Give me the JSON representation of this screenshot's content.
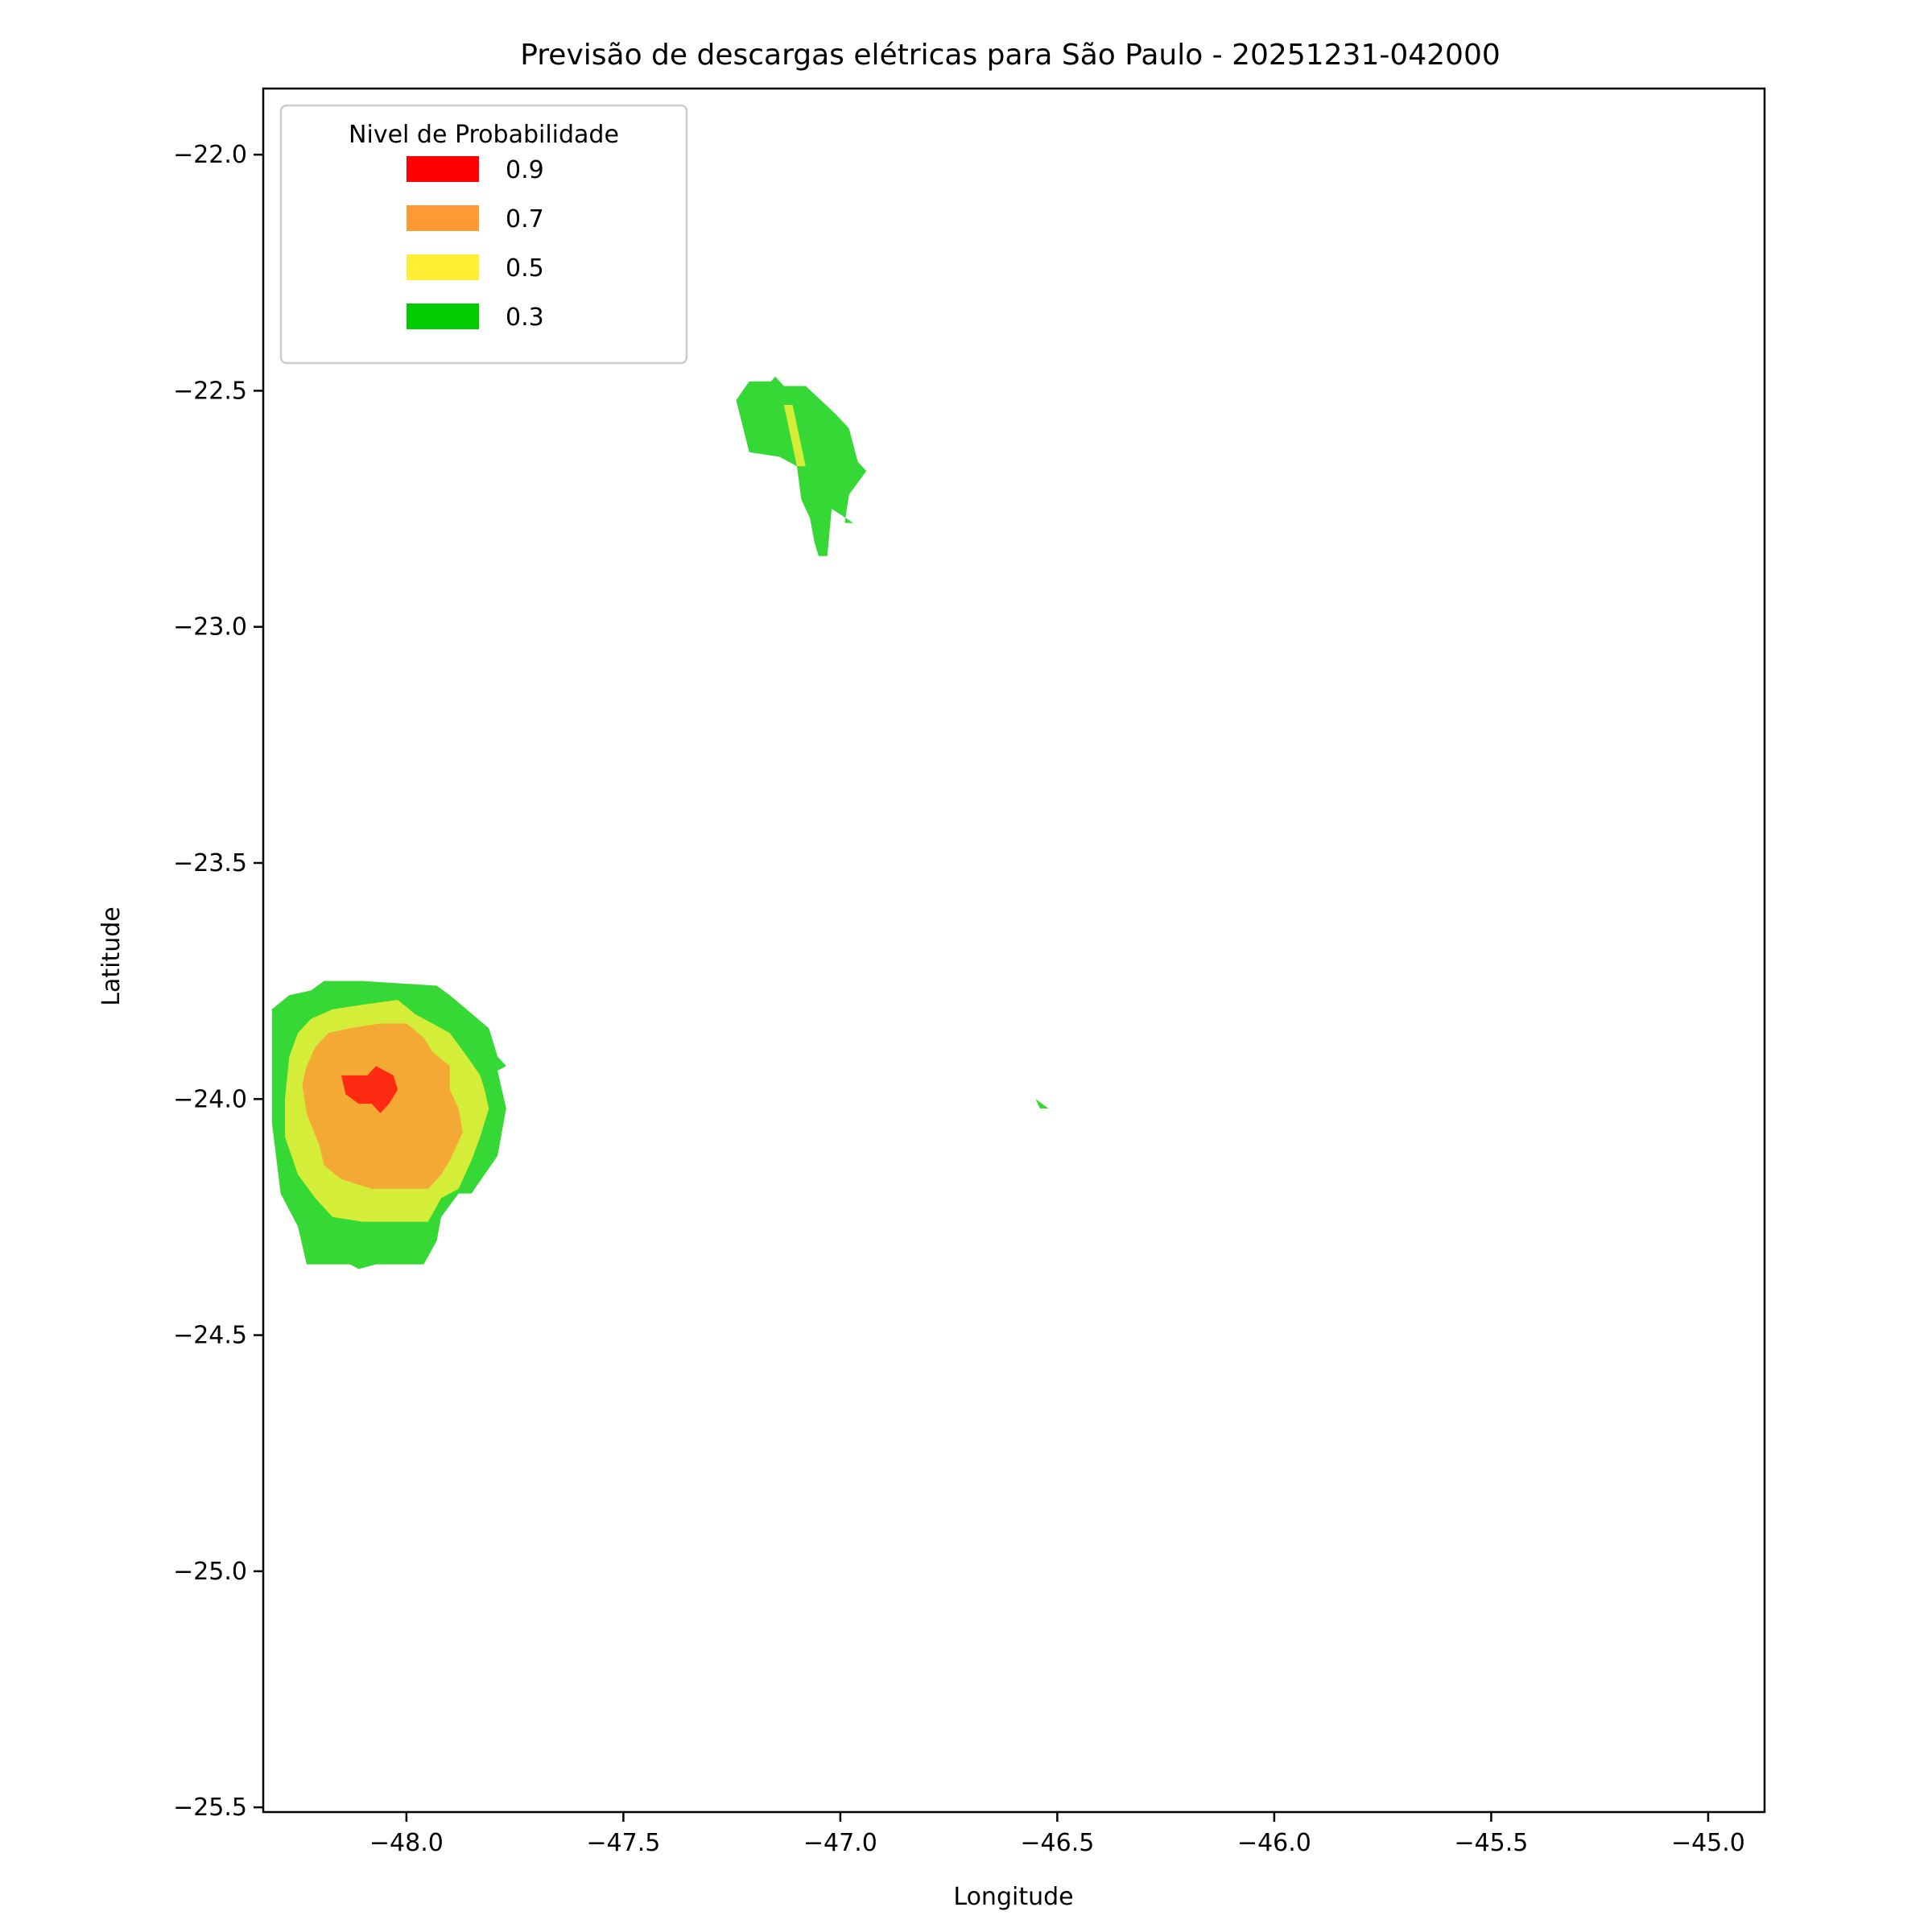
{
  "chart_data": {
    "type": "contour",
    "title": "Previsão de descargas elétricas para São Paulo - 20251231-042000",
    "xlabel": "Longitude",
    "ylabel": "Latitude",
    "xlim": [
      -48.33,
      -44.87
    ],
    "ylim": [
      -25.51,
      -21.86
    ],
    "xticks": [
      -48.0,
      -47.5,
      -47.0,
      -46.5,
      -46.0,
      -45.5,
      -45.0
    ],
    "xtick_labels": [
      "−48.0",
      "−47.5",
      "−47.0",
      "−46.5",
      "−46.0",
      "−45.5",
      "−45.0"
    ],
    "yticks": [
      -22.0,
      -22.5,
      -23.0,
      -23.5,
      -24.0,
      -24.5,
      -25.0,
      -25.5
    ],
    "ytick_labels": [
      "−22.0",
      "−22.5",
      "−23.0",
      "−23.5",
      "−24.0",
      "−24.5",
      "−25.0",
      "−25.5"
    ],
    "grid": false,
    "legend": {
      "title": "Nivel de Probabilidade",
      "placement": "top-left",
      "entries": [
        {
          "label": "0.9",
          "color": "#ff0000"
        },
        {
          "label": "0.7",
          "color": "#ff9933"
        },
        {
          "label": "0.5",
          "color": "#ffee33"
        },
        {
          "label": "0.3",
          "color": "#00cc00"
        }
      ]
    },
    "level_fill_colors": {
      "0.3": "#35d835",
      "0.5": "#d4ed38",
      "0.7": "#f5a935",
      "0.9": "#ff2a12"
    },
    "regions": [
      {
        "name": "southwest-cell",
        "level": "0.3",
        "points": [
          [
            -48.31,
            -23.81
          ],
          [
            -48.27,
            -23.78
          ],
          [
            -48.22,
            -23.77
          ],
          [
            -48.19,
            -23.75
          ],
          [
            -48.1,
            -23.75
          ],
          [
            -47.93,
            -23.76
          ],
          [
            -47.9,
            -23.78
          ],
          [
            -47.81,
            -23.85
          ],
          [
            -47.79,
            -23.91
          ],
          [
            -47.77,
            -23.93
          ],
          [
            -47.79,
            -23.94
          ],
          [
            -47.77,
            -24.02
          ],
          [
            -47.79,
            -24.12
          ],
          [
            -47.85,
            -24.2
          ],
          [
            -47.88,
            -24.2
          ],
          [
            -47.92,
            -24.25
          ],
          [
            -47.93,
            -24.3
          ],
          [
            -47.96,
            -24.35
          ],
          [
            -48.07,
            -24.35
          ],
          [
            -48.11,
            -24.36
          ],
          [
            -48.13,
            -24.35
          ],
          [
            -48.23,
            -24.35
          ],
          [
            -48.25,
            -24.27
          ],
          [
            -48.29,
            -24.2
          ],
          [
            -48.31,
            -24.05
          ]
        ]
      },
      {
        "name": "southwest-cell",
        "level": "0.5",
        "points": [
          [
            -48.27,
            -23.91
          ],
          [
            -48.25,
            -23.86
          ],
          [
            -48.22,
            -23.83
          ],
          [
            -48.17,
            -23.81
          ],
          [
            -48.1,
            -23.8
          ],
          [
            -48.02,
            -23.79
          ],
          [
            -47.98,
            -23.82
          ],
          [
            -47.94,
            -23.84
          ],
          [
            -47.9,
            -23.86
          ],
          [
            -47.86,
            -23.91
          ],
          [
            -47.83,
            -23.95
          ],
          [
            -47.82,
            -23.98
          ],
          [
            -47.81,
            -24.02
          ],
          [
            -47.83,
            -24.08
          ],
          [
            -47.85,
            -24.13
          ],
          [
            -47.88,
            -24.19
          ],
          [
            -47.92,
            -24.21
          ],
          [
            -47.95,
            -24.26
          ],
          [
            -48.1,
            -24.26
          ],
          [
            -48.17,
            -24.25
          ],
          [
            -48.21,
            -24.21
          ],
          [
            -48.25,
            -24.16
          ],
          [
            -48.28,
            -24.08
          ],
          [
            -48.28,
            -24
          ]
        ]
      },
      {
        "name": "southwest-cell",
        "level": "0.7",
        "points": [
          [
            -48.23,
            -23.93
          ],
          [
            -48.21,
            -23.89
          ],
          [
            -48.18,
            -23.86
          ],
          [
            -48.13,
            -23.85
          ],
          [
            -48.06,
            -23.84
          ],
          [
            -48.0,
            -23.84
          ],
          [
            -47.96,
            -23.87
          ],
          [
            -47.94,
            -23.9
          ],
          [
            -47.9,
            -23.93
          ],
          [
            -47.9,
            -23.98
          ],
          [
            -47.88,
            -24.02
          ],
          [
            -47.87,
            -24.07
          ],
          [
            -47.89,
            -24.11
          ],
          [
            -47.9,
            -24.13
          ],
          [
            -47.92,
            -24.16
          ],
          [
            -47.95,
            -24.19
          ],
          [
            -48.08,
            -24.19
          ],
          [
            -48.15,
            -24.17
          ],
          [
            -48.19,
            -24.14
          ],
          [
            -48.2,
            -24.1
          ],
          [
            -48.23,
            -24.03
          ],
          [
            -48.24,
            -23.97
          ]
        ]
      },
      {
        "name": "southwest-cell",
        "level": "0.9",
        "points": [
          [
            -48.15,
            -23.95
          ],
          [
            -48.09,
            -23.95
          ],
          [
            -48.07,
            -23.93
          ],
          [
            -48.03,
            -23.95
          ],
          [
            -48.02,
            -23.98
          ],
          [
            -48.04,
            -24.01
          ],
          [
            -48.06,
            -24.03
          ],
          [
            -48.08,
            -24.01
          ],
          [
            -48.11,
            -24.01
          ],
          [
            -48.14,
            -23.99
          ]
        ]
      },
      {
        "name": "northeast-cell",
        "level": "0.3",
        "points": [
          [
            -47.24,
            -22.52
          ],
          [
            -47.21,
            -22.48
          ],
          [
            -47.16,
            -22.48
          ],
          [
            -47.15,
            -22.47
          ],
          [
            -47.13,
            -22.49
          ],
          [
            -47.08,
            -22.49
          ],
          [
            -47.01,
            -22.55
          ],
          [
            -46.98,
            -22.58
          ],
          [
            -46.96,
            -22.65
          ],
          [
            -46.94,
            -22.67
          ],
          [
            -46.98,
            -22.72
          ],
          [
            -46.99,
            -22.78
          ],
          [
            -46.97,
            -22.78
          ],
          [
            -47.02,
            -22.75
          ],
          [
            -47.03,
            -22.85
          ],
          [
            -47.05,
            -22.85
          ],
          [
            -47.06,
            -22.82
          ],
          [
            -47.07,
            -22.77
          ],
          [
            -47.09,
            -22.73
          ],
          [
            -47.1,
            -22.66
          ],
          [
            -47.14,
            -22.64
          ],
          [
            -47.21,
            -22.63
          ]
        ]
      },
      {
        "name": "northeast-cell",
        "level": "0.5",
        "points": [
          [
            -47.13,
            -22.53
          ],
          [
            -47.11,
            -22.53
          ],
          [
            -47.08,
            -22.66
          ],
          [
            -47.1,
            -22.66
          ]
        ]
      },
      {
        "name": "east-speck",
        "level": "0.3",
        "points": [
          [
            -46.55,
            -24.0
          ],
          [
            -46.52,
            -24.02
          ],
          [
            -46.54,
            -24.02
          ]
        ]
      }
    ]
  }
}
